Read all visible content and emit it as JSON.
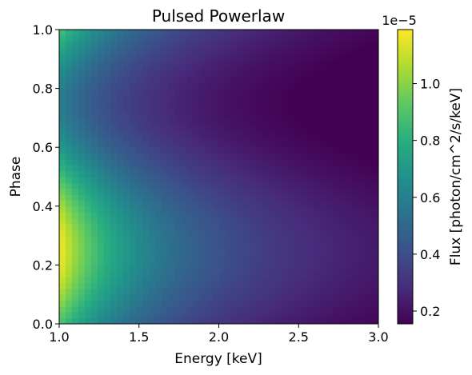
{
  "chart_data": {
    "type": "heatmap",
    "title": "Pulsed Powerlaw",
    "xlabel": "Energy [keV]",
    "ylabel": "Phase",
    "xlim": [
      1.0,
      3.0
    ],
    "ylim": [
      0.0,
      1.0
    ],
    "x_ticks": [
      "1.0",
      "1.5",
      "2.0",
      "2.5",
      "3.0"
    ],
    "y_ticks": [
      "0.0",
      "0.2",
      "0.4",
      "0.6",
      "0.8",
      "1.0"
    ],
    "colormap": "viridis",
    "colorbar": {
      "label": "Flux [photon/cm^2/s/keV]",
      "offset_text": "1e−5",
      "range": [
        1.55e-06,
        1.19e-05
      ],
      "ticks": [
        "0.2",
        "0.4",
        "0.6",
        "0.8",
        "1.0"
      ]
    },
    "grid": false,
    "energy_bins": 50,
    "phase_bins": 50,
    "model": {
      "powerlaw_index": 1.5,
      "flux_at_1keV_phase_max": 1.185e-05,
      "flux_at_1keV_phase_min": 6e-06,
      "phase_of_max": 0.25,
      "phase_of_min": 0.75
    }
  }
}
